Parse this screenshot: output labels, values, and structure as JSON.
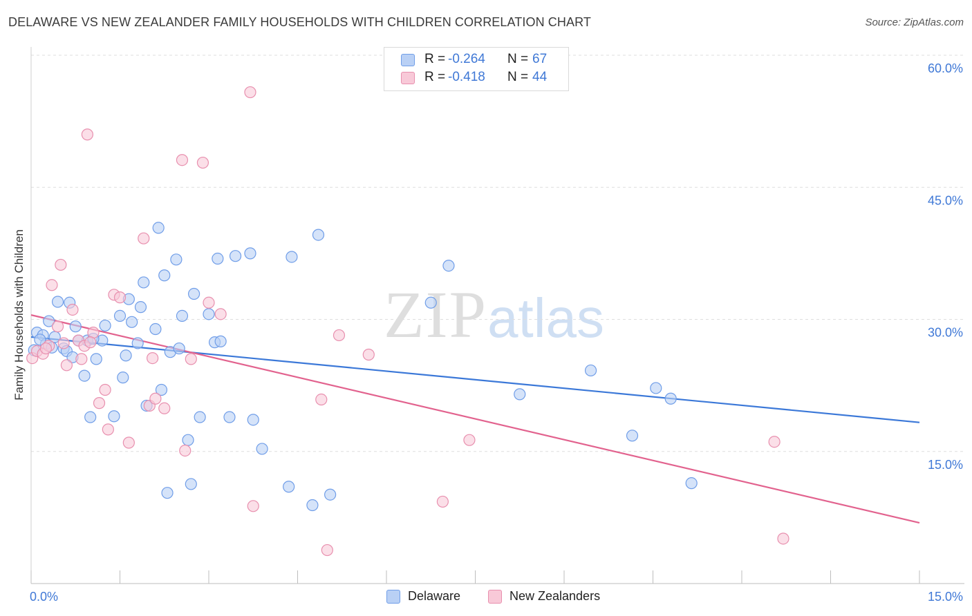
{
  "header": {
    "title": "DELAWARE VS NEW ZEALANDER FAMILY HOUSEHOLDS WITH CHILDREN CORRELATION CHART",
    "source": "Source: ZipAtlas.com"
  },
  "watermark": {
    "zip": "ZIP",
    "atlas": "atlas"
  },
  "legend": {
    "rows": [
      {
        "r_label": "R =",
        "r_value": "-0.264",
        "n_label": "N =",
        "n_value": "67",
        "color": "#6f9de8",
        "fill": "#b9d0f5"
      },
      {
        "r_label": "R =",
        "r_value": "-0.418",
        "n_label": "N =",
        "n_value": "44",
        "color": "#e88fae",
        "fill": "#f8c9d8"
      }
    ]
  },
  "bottom_legend": {
    "delaware": "Delaware",
    "new_zealanders": "New Zealanders"
  },
  "chart_data": {
    "type": "scatter",
    "title": "DELAWARE VS NEW ZEALANDER FAMILY HOUSEHOLDS WITH CHILDREN CORRELATION CHART",
    "xlabel": "",
    "ylabel": "Family Households with Children",
    "xlim": [
      0,
      15
    ],
    "ylim": [
      0,
      60
    ],
    "x_tick_labels": [
      "0.0%",
      "15.0%"
    ],
    "y_ticks": [
      15,
      30,
      45,
      60
    ],
    "y_tick_labels": [
      "15.0%",
      "30.0%",
      "45.0%",
      "60.0%"
    ],
    "grid": true,
    "legend_position": "top-center",
    "series": [
      {
        "name": "Delaware",
        "color": "#3b78d8",
        "marker_fill": "#b9d0f5",
        "marker_edge": "#6f9de8",
        "trend": {
          "x": [
            0,
            15
          ],
          "y": [
            28.0,
            18.3
          ]
        },
        "points": [
          [
            0.05,
            26.5
          ],
          [
            0.1,
            28.5
          ],
          [
            0.2,
            28.2
          ],
          [
            0.25,
            27.2
          ],
          [
            0.3,
            29.8
          ],
          [
            0.35,
            26.8
          ],
          [
            0.45,
            32.0
          ],
          [
            0.55,
            26.7
          ],
          [
            0.6,
            26.4
          ],
          [
            0.65,
            31.9
          ],
          [
            0.7,
            25.7
          ],
          [
            0.75,
            29.2
          ],
          [
            0.8,
            27.6
          ],
          [
            0.9,
            23.6
          ],
          [
            0.95,
            27.6
          ],
          [
            1.0,
            18.9
          ],
          [
            1.1,
            25.5
          ],
          [
            1.2,
            27.6
          ],
          [
            1.25,
            29.3
          ],
          [
            1.4,
            19.0
          ],
          [
            1.5,
            30.4
          ],
          [
            1.55,
            23.4
          ],
          [
            1.6,
            25.9
          ],
          [
            1.65,
            32.3
          ],
          [
            1.7,
            29.7
          ],
          [
            1.8,
            27.3
          ],
          [
            1.85,
            31.4
          ],
          [
            1.9,
            34.2
          ],
          [
            1.95,
            20.2
          ],
          [
            2.1,
            28.9
          ],
          [
            2.15,
            40.4
          ],
          [
            2.2,
            22.0
          ],
          [
            2.25,
            35.0
          ],
          [
            2.3,
            10.3
          ],
          [
            2.35,
            26.3
          ],
          [
            2.45,
            36.8
          ],
          [
            2.5,
            26.7
          ],
          [
            2.55,
            30.4
          ],
          [
            2.65,
            16.3
          ],
          [
            2.7,
            11.3
          ],
          [
            2.75,
            32.9
          ],
          [
            2.85,
            18.9
          ],
          [
            3.0,
            30.6
          ],
          [
            3.1,
            27.4
          ],
          [
            3.15,
            36.9
          ],
          [
            3.2,
            27.5
          ],
          [
            3.35,
            18.9
          ],
          [
            3.45,
            37.2
          ],
          [
            3.7,
            37.5
          ],
          [
            3.75,
            18.6
          ],
          [
            3.9,
            15.3
          ],
          [
            4.35,
            11.0
          ],
          [
            4.4,
            37.1
          ],
          [
            4.75,
            8.9
          ],
          [
            4.85,
            39.6
          ],
          [
            5.05,
            10.1
          ],
          [
            6.75,
            31.9
          ],
          [
            7.05,
            36.1
          ],
          [
            8.25,
            21.5
          ],
          [
            9.45,
            24.2
          ],
          [
            10.15,
            16.8
          ],
          [
            10.55,
            22.2
          ],
          [
            10.8,
            21.0
          ],
          [
            11.15,
            11.4
          ],
          [
            0.15,
            27.7
          ],
          [
            0.4,
            28.0
          ],
          [
            1.05,
            27.8
          ]
        ]
      },
      {
        "name": "New Zealanders",
        "color": "#e2628e",
        "marker_fill": "#f8c9d8",
        "marker_edge": "#e88fae",
        "trend": {
          "x": [
            0,
            15
          ],
          "y": [
            30.5,
            6.9
          ]
        },
        "points": [
          [
            0.02,
            25.6
          ],
          [
            0.1,
            26.4
          ],
          [
            0.2,
            26.1
          ],
          [
            0.3,
            27.0
          ],
          [
            0.35,
            33.9
          ],
          [
            0.45,
            29.2
          ],
          [
            0.5,
            36.2
          ],
          [
            0.6,
            24.8
          ],
          [
            0.7,
            31.1
          ],
          [
            0.8,
            27.6
          ],
          [
            0.85,
            25.5
          ],
          [
            0.9,
            27.0
          ],
          [
            0.95,
            51.0
          ],
          [
            1.05,
            28.5
          ],
          [
            1.15,
            20.5
          ],
          [
            1.25,
            22.0
          ],
          [
            1.3,
            17.5
          ],
          [
            1.4,
            32.8
          ],
          [
            1.5,
            32.5
          ],
          [
            1.65,
            16.0
          ],
          [
            1.9,
            39.2
          ],
          [
            2.0,
            20.2
          ],
          [
            2.05,
            25.6
          ],
          [
            2.1,
            21.0
          ],
          [
            2.25,
            19.9
          ],
          [
            2.55,
            48.1
          ],
          [
            2.6,
            15.1
          ],
          [
            2.7,
            25.5
          ],
          [
            2.9,
            47.8
          ],
          [
            3.0,
            31.9
          ],
          [
            3.2,
            30.6
          ],
          [
            3.7,
            55.8
          ],
          [
            3.75,
            8.8
          ],
          [
            4.9,
            20.9
          ],
          [
            5.0,
            3.8
          ],
          [
            5.2,
            28.2
          ],
          [
            5.7,
            26.0
          ],
          [
            6.95,
            9.3
          ],
          [
            7.4,
            16.3
          ],
          [
            12.55,
            16.1
          ],
          [
            12.7,
            5.1
          ],
          [
            0.25,
            26.7
          ],
          [
            0.55,
            27.3
          ],
          [
            1.0,
            27.4
          ]
        ]
      }
    ]
  }
}
